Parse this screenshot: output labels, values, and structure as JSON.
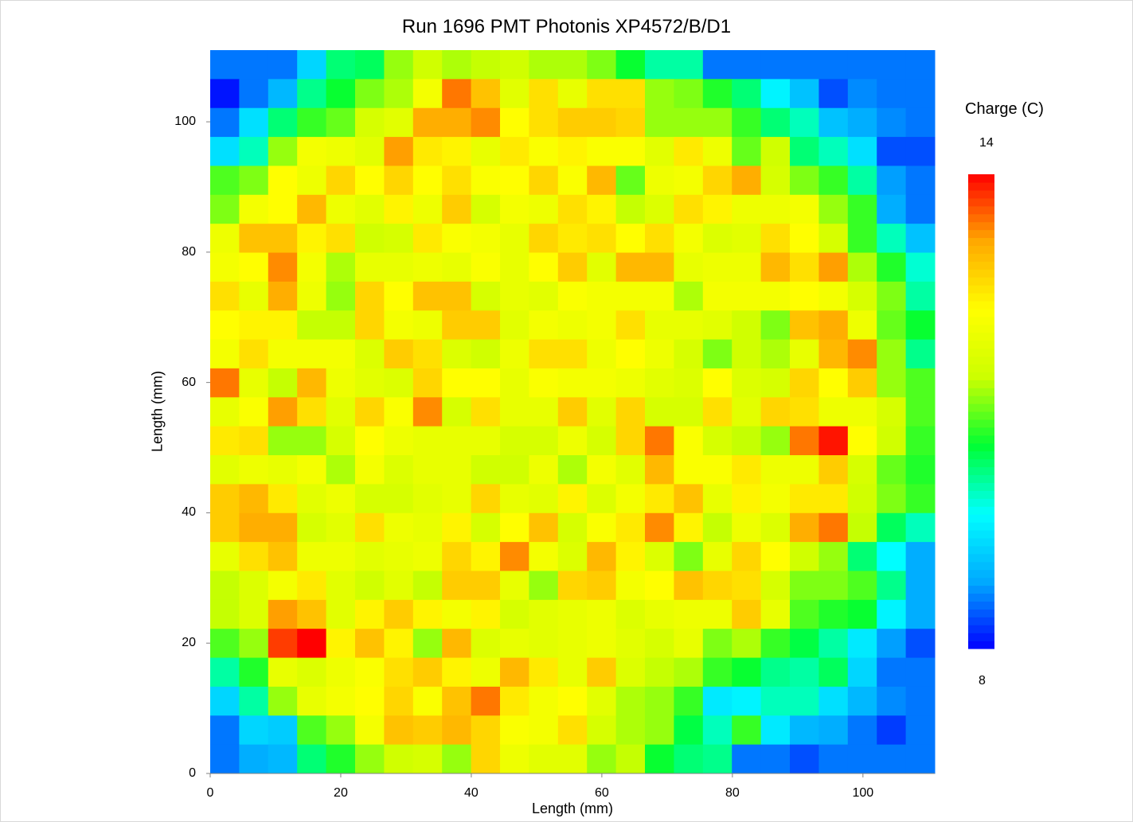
{
  "chart_data": {
    "type": "heatmap",
    "title": "Run 1696 PMT Photonis XP4572/B/D1",
    "xlabel": "Length (mm)",
    "ylabel": "Length (mm)",
    "xlim": [
      0,
      111
    ],
    "ylim": [
      0,
      111
    ],
    "bin_width_mm": 4.44,
    "x_ticks": [
      0,
      20,
      40,
      60,
      80,
      100
    ],
    "y_ticks": [
      0,
      20,
      40,
      60,
      80,
      100
    ],
    "colorbar": {
      "title": "Charge (C)",
      "max_label": "14",
      "min_label": "8",
      "range": [
        8,
        14
      ],
      "colors": [
        "#0000ff",
        "#00aaff",
        "#00ffff",
        "#00ff33",
        "#ccff00",
        "#ffff00",
        "#ffaa00",
        "#ff0000"
      ]
    },
    "rows_top_to_bottom": [
      [
        8.6,
        8.6,
        8.6,
        9.3,
        10.3,
        10.4,
        11.2,
        11.5,
        11.3,
        11.4,
        11.5,
        11.3,
        11.3,
        11.1,
        10.6,
        10.1,
        10.1,
        8.6,
        8.6,
        8.6,
        8.6,
        8.6,
        8.6,
        8.6,
        8.6
      ],
      [
        8.1,
        8.6,
        9.0,
        10.2,
        10.6,
        11.1,
        11.3,
        12.1,
        13.4,
        12.9,
        11.8,
        12.6,
        11.9,
        12.6,
        12.6,
        11.2,
        11.1,
        10.7,
        10.3,
        9.6,
        9.1,
        8.4,
        8.7,
        8.6,
        8.6
      ],
      [
        8.6,
        9.4,
        10.3,
        10.8,
        11.0,
        11.6,
        11.8,
        13.1,
        13.1,
        13.3,
        12.3,
        12.6,
        12.8,
        12.8,
        12.7,
        11.2,
        11.2,
        11.2,
        10.8,
        10.3,
        10.0,
        9.1,
        8.9,
        8.7,
        8.6
      ],
      [
        9.4,
        10.0,
        11.2,
        12.1,
        12.0,
        11.8,
        13.2,
        12.5,
        12.4,
        11.9,
        12.5,
        12.2,
        12.4,
        12.2,
        12.2,
        11.8,
        12.5,
        12.0,
        11.0,
        11.5,
        10.3,
        10.0,
        9.4,
        8.4,
        8.4
      ],
      [
        10.9,
        11.1,
        12.3,
        12.0,
        12.7,
        12.3,
        12.7,
        12.3,
        12.6,
        12.2,
        12.3,
        12.7,
        12.2,
        13.0,
        11.0,
        12.0,
        12.1,
        12.7,
        13.1,
        11.6,
        11.1,
        10.8,
        10.1,
        8.8,
        8.6
      ],
      [
        11.1,
        12.1,
        12.3,
        13.0,
        12.0,
        11.8,
        12.4,
        12.0,
        12.8,
        11.6,
        12.1,
        12.0,
        12.6,
        12.4,
        11.4,
        11.7,
        12.6,
        12.4,
        12.0,
        12.0,
        12.1,
        11.2,
        10.8,
        8.9,
        8.6
      ],
      [
        12.0,
        12.9,
        12.9,
        12.4,
        12.6,
        11.5,
        11.6,
        12.5,
        12.2,
        12.1,
        11.9,
        12.7,
        12.5,
        12.6,
        12.3,
        12.6,
        12.1,
        11.7,
        11.8,
        12.6,
        12.3,
        11.6,
        10.8,
        10.0,
        9.1
      ],
      [
        12.1,
        12.3,
        13.3,
        12.1,
        11.3,
        11.9,
        11.9,
        12.0,
        11.9,
        12.2,
        11.9,
        12.3,
        12.8,
        11.8,
        13.0,
        13.0,
        11.9,
        12.0,
        12.0,
        13.0,
        12.6,
        13.2,
        11.3,
        10.7,
        9.9
      ],
      [
        12.6,
        11.9,
        13.1,
        12.0,
        11.2,
        12.7,
        12.3,
        12.9,
        12.9,
        11.6,
        11.9,
        11.8,
        12.2,
        12.1,
        12.1,
        12.1,
        11.3,
        12.1,
        12.1,
        12.1,
        12.3,
        12.1,
        11.6,
        11.1,
        10.1
      ],
      [
        12.3,
        12.4,
        12.4,
        11.4,
        11.4,
        12.7,
        12.1,
        12.0,
        12.8,
        12.8,
        11.8,
        12.1,
        12.0,
        12.1,
        12.6,
        11.9,
        11.9,
        11.8,
        11.5,
        11.1,
        12.9,
        13.1,
        12.0,
        11.0,
        10.6
      ],
      [
        12.1,
        12.6,
        12.1,
        12.1,
        12.1,
        11.7,
        12.8,
        12.6,
        11.7,
        11.5,
        12.0,
        12.6,
        12.6,
        12.0,
        12.3,
        12.0,
        11.6,
        11.1,
        11.5,
        11.3,
        11.9,
        13.0,
        13.3,
        11.2,
        10.2
      ],
      [
        13.4,
        11.9,
        11.4,
        13.0,
        12.0,
        11.8,
        11.7,
        12.7,
        12.3,
        12.3,
        11.9,
        12.2,
        12.1,
        12.1,
        12.0,
        11.8,
        11.7,
        12.3,
        11.7,
        11.6,
        12.7,
        12.3,
        12.8,
        11.2,
        10.9
      ],
      [
        11.9,
        12.2,
        13.2,
        12.6,
        11.8,
        12.7,
        12.2,
        13.3,
        11.6,
        12.6,
        11.9,
        11.9,
        12.8,
        11.8,
        12.7,
        11.6,
        11.6,
        12.6,
        11.8,
        12.7,
        12.6,
        12.0,
        12.0,
        11.6,
        10.9
      ],
      [
        12.5,
        12.6,
        11.2,
        11.2,
        11.6,
        12.3,
        12.0,
        11.9,
        11.9,
        11.9,
        11.6,
        11.6,
        12.0,
        11.6,
        12.7,
        13.4,
        12.2,
        11.6,
        11.4,
        11.2,
        13.4,
        13.9,
        12.3,
        11.5,
        10.8
      ],
      [
        11.8,
        12.0,
        11.9,
        12.1,
        11.3,
        12.1,
        11.7,
        11.9,
        11.9,
        11.5,
        11.5,
        12.0,
        11.3,
        12.1,
        11.8,
        13.0,
        12.2,
        12.2,
        12.5,
        12.0,
        12.0,
        12.8,
        11.6,
        11.0,
        10.7
      ],
      [
        12.8,
        13.0,
        12.5,
        11.8,
        12.0,
        11.6,
        11.6,
        11.8,
        11.9,
        12.7,
        11.9,
        11.8,
        12.4,
        11.7,
        12.1,
        12.5,
        12.9,
        11.9,
        12.4,
        12.1,
        12.5,
        12.5,
        11.5,
        11.1,
        10.8
      ],
      [
        12.8,
        13.1,
        13.1,
        11.6,
        11.8,
        12.6,
        12.0,
        11.9,
        12.4,
        11.6,
        12.3,
        12.9,
        11.6,
        12.2,
        12.5,
        13.3,
        12.4,
        11.4,
        12.0,
        11.7,
        13.1,
        13.4,
        11.4,
        10.4,
        10.0
      ],
      [
        11.9,
        12.6,
        12.9,
        12.0,
        12.0,
        11.8,
        11.9,
        12.0,
        12.7,
        12.4,
        13.3,
        12.1,
        11.7,
        13.0,
        12.4,
        11.7,
        11.1,
        11.9,
        12.7,
        12.3,
        11.5,
        11.2,
        10.3,
        9.7,
        8.9
      ],
      [
        11.4,
        11.7,
        12.1,
        12.5,
        11.8,
        11.5,
        11.8,
        11.4,
        12.8,
        12.8,
        11.9,
        11.2,
        12.7,
        12.8,
        12.1,
        12.3,
        12.9,
        12.7,
        12.6,
        11.6,
        11.1,
        11.1,
        10.9,
        10.2,
        8.9
      ],
      [
        11.4,
        11.7,
        13.2,
        12.9,
        11.8,
        12.4,
        12.8,
        12.4,
        12.1,
        12.4,
        11.6,
        11.8,
        11.9,
        12.0,
        11.7,
        11.9,
        12.0,
        12.0,
        12.8,
        11.9,
        10.9,
        10.7,
        10.6,
        9.6,
        8.9
      ],
      [
        10.9,
        11.2,
        13.7,
        14.0,
        12.4,
        12.9,
        12.4,
        11.2,
        13.0,
        11.7,
        11.9,
        11.8,
        11.9,
        12.0,
        11.8,
        11.6,
        11.9,
        11.1,
        11.3,
        10.8,
        10.5,
        10.1,
        9.5,
        8.8,
        8.4
      ],
      [
        10.1,
        10.7,
        11.9,
        11.7,
        12.0,
        12.2,
        12.6,
        12.8,
        12.4,
        12.0,
        13.0,
        12.5,
        11.9,
        12.8,
        11.7,
        11.4,
        11.3,
        10.8,
        10.6,
        10.2,
        10.1,
        10.4,
        9.3,
        8.6,
        8.6
      ],
      [
        9.3,
        10.1,
        11.2,
        11.9,
        12.1,
        12.3,
        12.7,
        12.2,
        12.9,
        13.4,
        12.5,
        12.1,
        12.3,
        11.8,
        11.3,
        11.2,
        10.8,
        9.5,
        9.6,
        10.0,
        10.0,
        9.4,
        9.0,
        8.7,
        8.6
      ],
      [
        8.6,
        9.3,
        9.2,
        10.9,
        11.2,
        12.1,
        12.9,
        12.8,
        13.0,
        12.7,
        12.2,
        12.1,
        12.6,
        11.6,
        11.3,
        11.2,
        10.5,
        10.0,
        10.8,
        9.5,
        9.0,
        8.9,
        8.6,
        8.3,
        8.6
      ],
      [
        8.6,
        8.9,
        9.0,
        10.3,
        10.7,
        11.2,
        11.5,
        11.6,
        11.2,
        12.7,
        12.0,
        11.8,
        11.8,
        11.2,
        11.4,
        10.6,
        10.3,
        10.2,
        8.6,
        8.6,
        8.4,
        8.6,
        8.6,
        8.6,
        8.6
      ]
    ]
  }
}
